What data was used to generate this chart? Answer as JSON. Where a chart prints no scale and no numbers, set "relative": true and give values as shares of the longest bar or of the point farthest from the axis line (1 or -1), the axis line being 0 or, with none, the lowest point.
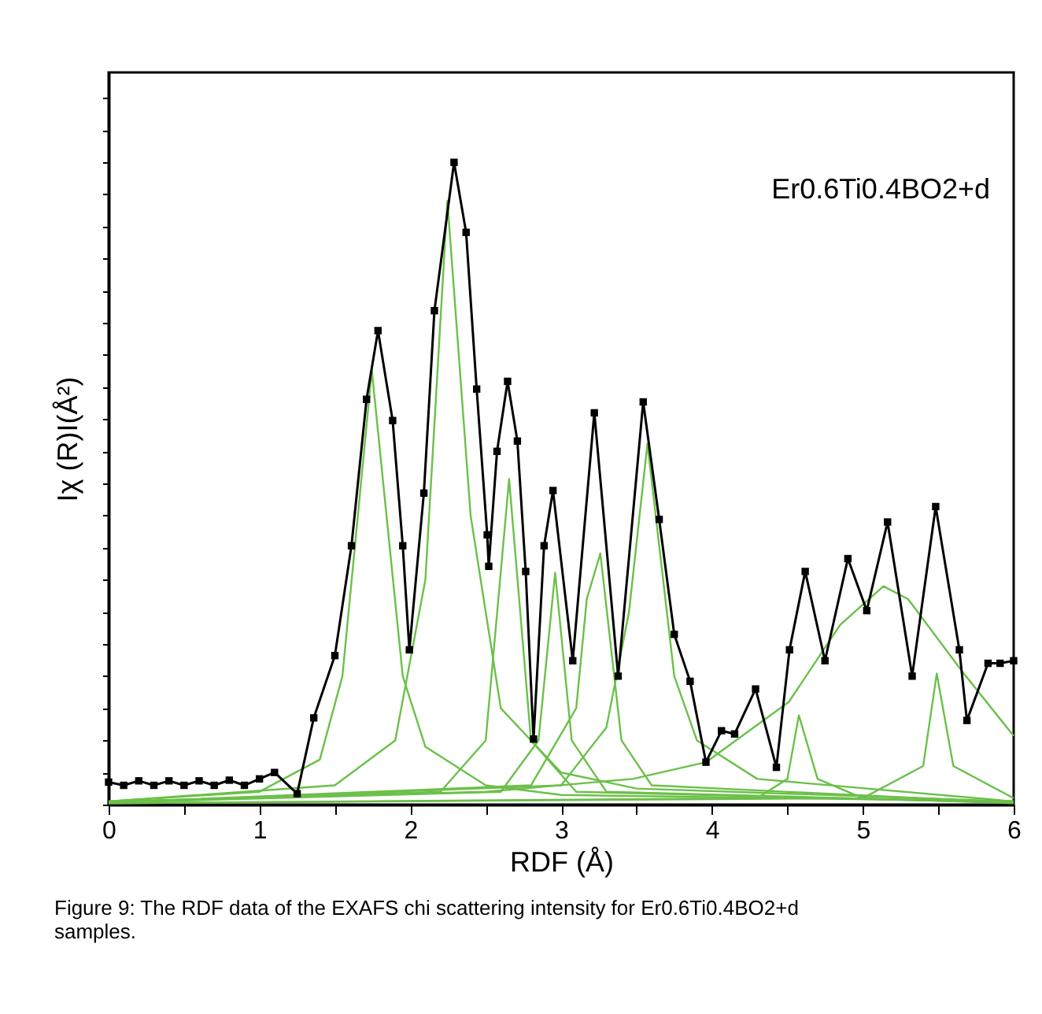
{
  "chart_data": {
    "type": "line",
    "relative": true,
    "xlabel": "RDF (Å)",
    "ylabel": "Iχ (R)I(Å²)",
    "xlim": [
      0,
      6
    ],
    "xticks": [
      0,
      {
        "value": 0.5,
        "label": null
      },
      1,
      {
        "value": 1.5,
        "label": null
      },
      2,
      {
        "value": 2.5,
        "label": null
      },
      3,
      {
        "value": 3.5,
        "label": null
      },
      4,
      {
        "value": 4.5,
        "label": null
      },
      5,
      {
        "value": 5.5,
        "label": null
      },
      6
    ],
    "grid": false,
    "annotations": [
      "Er0.6Ti0.4BO2+d",
      "Figure 9: The RDF data of the EXAFS chi scattering intensity for Er0.6Ti0.4BO2+d samples."
    ],
    "series": [
      {
        "color": "#6cc04a",
        "marker": "none",
        "x": [
          0,
          1.0,
          1.4,
          1.55,
          1.745,
          1.95,
          2.1,
          2.5,
          3.0,
          6
        ],
        "values": [
          0.005,
          0.02,
          0.07,
          0.2,
          0.676,
          0.2,
          0.09,
          0.03,
          0.015,
          0.005
        ]
      },
      {
        "color": "#6cc04a",
        "type": "line",
        "marker": "none",
        "x": [
          0,
          1.5,
          1.9,
          2.1,
          2.246,
          2.4,
          2.6,
          3.0,
          3.5,
          6
        ],
        "values": [
          0.005,
          0.03,
          0.1,
          0.35,
          0.94,
          0.45,
          0.15,
          0.05,
          0.025,
          0.005
        ]
      },
      {
        "color": "#6cc04a",
        "type": "line",
        "marker": "none",
        "x": [
          0,
          2.2,
          2.5,
          2.655,
          2.8,
          3.1,
          6
        ],
        "values": [
          0.003,
          0.02,
          0.1,
          0.507,
          0.1,
          0.02,
          0.003
        ]
      },
      {
        "color": "#6cc04a",
        "type": "line",
        "marker": "none",
        "x": [
          0,
          2.6,
          2.85,
          2.96,
          3.07,
          3.3,
          6
        ],
        "values": [
          0.003,
          0.02,
          0.1,
          0.361,
          0.1,
          0.02,
          0.003
        ]
      },
      {
        "color": "#6cc04a",
        "type": "line",
        "marker": "none",
        "x": [
          0,
          2.8,
          3.1,
          3.17,
          3.26,
          3.4,
          3.6,
          6
        ],
        "values": [
          0.003,
          0.03,
          0.15,
          0.32,
          0.391,
          0.1,
          0.03,
          0.003
        ]
      },
      {
        "color": "#6cc04a",
        "type": "line",
        "marker": "none",
        "x": [
          0,
          3.0,
          3.3,
          3.45,
          3.572,
          3.75,
          3.9,
          4.3,
          6
        ],
        "values": [
          0.003,
          0.03,
          0.12,
          0.3,
          0.562,
          0.2,
          0.1,
          0.04,
          0.005
        ]
      },
      {
        "color": "#6cc04a",
        "type": "line",
        "marker": "none",
        "x": [
          0,
          2.5,
          3.475,
          3.96,
          4.51,
          4.85,
          5.137,
          5.3,
          5.656,
          6
        ],
        "values": [
          0.005,
          0.02,
          0.04,
          0.066,
          0.16,
          0.28,
          0.34,
          0.32,
          0.208,
          0.107
        ]
      },
      {
        "color": "#6cc04a",
        "type": "line",
        "marker": "none",
        "x": [
          0,
          4.3,
          4.5,
          4.576,
          4.7,
          5.0,
          6
        ],
        "values": [
          0.002,
          0.01,
          0.04,
          0.139,
          0.04,
          0.01,
          0.002
        ]
      },
      {
        "color": "#6cc04a",
        "type": "line",
        "marker": "none",
        "x": [
          0,
          5.0,
          5.4,
          5.49,
          5.6,
          6
        ],
        "values": [
          0.002,
          0.01,
          0.06,
          0.204,
          0.06,
          0.01
        ]
      },
      {
        "color": "#000000",
        "marker": "square",
        "x": [
          0,
          0.1,
          0.2,
          0.3,
          0.4,
          0.5,
          0.6,
          0.7,
          0.8,
          0.9,
          1.0,
          1.1,
          1.25,
          1.36,
          1.5,
          1.61,
          1.71,
          1.786,
          1.883,
          1.95,
          1.994,
          2.09,
          2.16,
          2.29,
          2.37,
          2.44,
          2.51,
          2.52,
          2.575,
          2.645,
          2.71,
          2.765,
          2.817,
          2.887,
          2.946,
          3.077,
          3.22,
          3.378,
          3.544,
          3.65,
          3.75,
          3.855,
          3.96,
          4.063,
          4.15,
          4.289,
          4.427,
          4.514,
          4.618,
          4.749,
          4.901,
          5.026,
          5.164,
          5.327,
          5.483,
          5.64,
          5.69,
          5.83,
          5.91,
          6.0
        ],
        "values": [
          0.035,
          0.03,
          0.037,
          0.03,
          0.037,
          0.03,
          0.037,
          0.03,
          0.038,
          0.03,
          0.04,
          0.05,
          0.017,
          0.135,
          0.232,
          0.403,
          0.631,
          0.738,
          0.598,
          0.403,
          0.241,
          0.485,
          0.769,
          1.0,
          0.891,
          0.647,
          0.42,
          0.371,
          0.55,
          0.659,
          0.566,
          0.363,
          0.102,
          0.403,
          0.489,
          0.224,
          0.61,
          0.2,
          0.627,
          0.444,
          0.265,
          0.192,
          0.066,
          0.115,
          0.11,
          0.18,
          0.058,
          0.241,
          0.363,
          0.224,
          0.383,
          0.302,
          0.44,
          0.2,
          0.464,
          0.241,
          0.131,
          0.22,
          0.22,
          0.224
        ]
      }
    ]
  }
}
